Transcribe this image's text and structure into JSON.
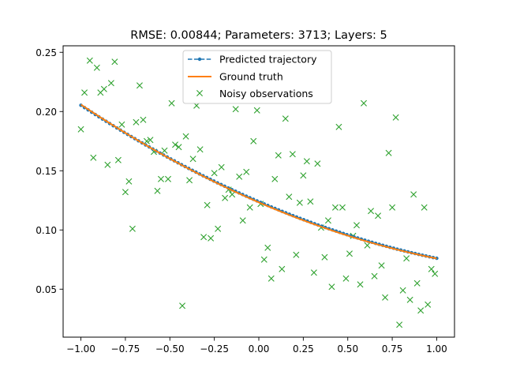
{
  "chart_data": {
    "type": "line",
    "title": "RMSE: 0.00844; Parameters: 3713; Layers: 5",
    "xlabel": "",
    "ylabel": "",
    "xlim": [
      -1.1,
      1.1
    ],
    "ylim": [
      0.0095,
      0.2555
    ],
    "x_ticks": [
      -1.0,
      -0.75,
      -0.5,
      -0.25,
      0.0,
      0.25,
      0.5,
      0.75,
      1.0
    ],
    "x_tick_labels": [
      "−1.00",
      "−0.75",
      "−0.50",
      "−0.25",
      "0.00",
      "0.25",
      "0.50",
      "0.75",
      "1.00"
    ],
    "y_ticks": [
      0.05,
      0.1,
      0.15,
      0.2,
      0.25
    ],
    "y_tick_labels": [
      "0.05",
      "0.10",
      "0.15",
      "0.20",
      "0.25"
    ],
    "grid": false,
    "legend_position": "top-center",
    "series": [
      {
        "name": "Predicted trajectory",
        "kind": "line-markers",
        "style": "dashed",
        "color": "#1f77b4",
        "model": {
          "a": 0.1239,
          "b": -0.0646,
          "c": 0.0168,
          "x_start": -1.0,
          "x_end": 1.0,
          "n": 100
        }
      },
      {
        "name": "Ground truth",
        "kind": "line",
        "style": "solid",
        "color": "#ff7f0e",
        "model": {
          "a": 0.1233,
          "b": -0.065,
          "c": 0.0176,
          "x_start": -1.0,
          "x_end": 1.0,
          "n": 100
        }
      },
      {
        "name": "Noisy observations",
        "kind": "scatter",
        "marker": "x",
        "color": "#2ca02c",
        "points": [
          [
            -1.0,
            0.185
          ],
          [
            -0.98,
            0.216
          ],
          [
            -0.95,
            0.243
          ],
          [
            -0.93,
            0.161
          ],
          [
            -0.91,
            0.237
          ],
          [
            -0.89,
            0.216
          ],
          [
            -0.87,
            0.219
          ],
          [
            -0.85,
            0.155
          ],
          [
            -0.83,
            0.224
          ],
          [
            -0.81,
            0.242
          ],
          [
            -0.79,
            0.159
          ],
          [
            -0.77,
            0.189
          ],
          [
            -0.75,
            0.132
          ],
          [
            -0.73,
            0.141
          ],
          [
            -0.71,
            0.101
          ],
          [
            -0.69,
            0.191
          ],
          [
            -0.67,
            0.222
          ],
          [
            -0.65,
            0.193
          ],
          [
            -0.63,
            0.175
          ],
          [
            -0.61,
            0.176
          ],
          [
            -0.59,
            0.166
          ],
          [
            -0.57,
            0.133
          ],
          [
            -0.55,
            0.143
          ],
          [
            -0.53,
            0.167
          ],
          [
            -0.51,
            0.143
          ],
          [
            -0.49,
            0.207
          ],
          [
            -0.47,
            0.172
          ],
          [
            -0.45,
            0.17
          ],
          [
            -0.43,
            0.036
          ],
          [
            -0.41,
            0.179
          ],
          [
            -0.39,
            0.142
          ],
          [
            -0.37,
            0.16
          ],
          [
            -0.35,
            0.205
          ],
          [
            -0.33,
            0.168
          ],
          [
            -0.31,
            0.094
          ],
          [
            -0.29,
            0.121
          ],
          [
            -0.27,
            0.093
          ],
          [
            -0.25,
            0.148
          ],
          [
            -0.23,
            0.101
          ],
          [
            -0.21,
            0.153
          ],
          [
            -0.19,
            0.127
          ],
          [
            -0.17,
            0.134
          ],
          [
            -0.15,
            0.13
          ],
          [
            -0.13,
            0.202
          ],
          [
            -0.11,
            0.145
          ],
          [
            -0.09,
            0.108
          ],
          [
            -0.07,
            0.149
          ],
          [
            -0.05,
            0.119
          ],
          [
            -0.03,
            0.175
          ],
          [
            -0.01,
            0.201
          ],
          [
            0.01,
            0.122
          ],
          [
            0.03,
            0.075
          ],
          [
            0.05,
            0.085
          ],
          [
            0.07,
            0.059
          ],
          [
            0.09,
            0.143
          ],
          [
            0.11,
            0.163
          ],
          [
            0.13,
            0.067
          ],
          [
            0.15,
            0.194
          ],
          [
            0.17,
            0.128
          ],
          [
            0.19,
            0.164
          ],
          [
            0.21,
            0.079
          ],
          [
            0.23,
            0.123
          ],
          [
            0.25,
            0.146
          ],
          [
            0.27,
            0.158
          ],
          [
            0.29,
            0.124
          ],
          [
            0.31,
            0.064
          ],
          [
            0.33,
            0.156
          ],
          [
            0.35,
            0.102
          ],
          [
            0.37,
            0.077
          ],
          [
            0.39,
            0.108
          ],
          [
            0.41,
            0.052
          ],
          [
            0.43,
            0.119
          ],
          [
            0.45,
            0.187
          ],
          [
            0.47,
            0.119
          ],
          [
            0.49,
            0.059
          ],
          [
            0.51,
            0.08
          ],
          [
            0.53,
            0.095
          ],
          [
            0.55,
            0.104
          ],
          [
            0.57,
            0.054
          ],
          [
            0.59,
            0.207
          ],
          [
            0.61,
            0.087
          ],
          [
            0.63,
            0.116
          ],
          [
            0.65,
            0.061
          ],
          [
            0.67,
            0.112
          ],
          [
            0.69,
            0.07
          ],
          [
            0.71,
            0.043
          ],
          [
            0.73,
            0.165
          ],
          [
            0.75,
            0.119
          ],
          [
            0.77,
            0.195
          ],
          [
            0.79,
            0.02
          ],
          [
            0.81,
            0.049
          ],
          [
            0.83,
            0.076
          ],
          [
            0.85,
            0.041
          ],
          [
            0.87,
            0.13
          ],
          [
            0.89,
            0.055
          ],
          [
            0.91,
            0.032
          ],
          [
            0.93,
            0.119
          ],
          [
            0.95,
            0.037
          ],
          [
            0.97,
            0.067
          ],
          [
            0.99,
            0.063
          ]
        ]
      }
    ]
  }
}
